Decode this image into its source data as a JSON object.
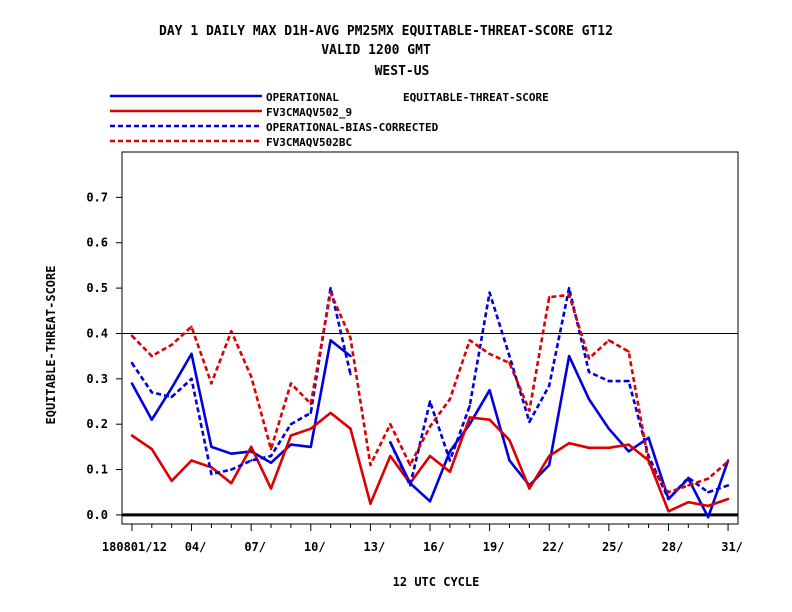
{
  "chart_data": {
    "type": "line",
    "title_lines": [
      "DAY 1 DAILY MAX   D1H-AVG PM25MX EQUITABLE-THREAT-SCORE GT12",
      "VALID 1200 GMT",
      "WEST-US"
    ],
    "legend_score_label": "EQUITABLE-THREAT-SCORE",
    "xlabel": "12 UTC CYCLE",
    "ylabel": "EQUITABLE-THREAT-SCORE",
    "xlim": [
      0.5,
      31.5
    ],
    "ylim": [
      -0.02,
      0.8
    ],
    "yticks": [
      0.0,
      0.1,
      0.2,
      0.3,
      0.4,
      0.5,
      0.6,
      0.7
    ],
    "ytick_labels": [
      "0.0",
      "0.1",
      "0.2",
      "0.3",
      "0.4",
      "0.5",
      "0.6",
      "0.7"
    ],
    "xticks": [
      1,
      4,
      7,
      10,
      13,
      16,
      19,
      22,
      25,
      28,
      31
    ],
    "xtick_labels": [
      "180801/12",
      "04/",
      "07/",
      "10/",
      "13/",
      "16/",
      "19/",
      "22/",
      "25/",
      "28/",
      "31/"
    ],
    "reference_lines": [
      0.0,
      0.4
    ],
    "x": [
      1,
      2,
      3,
      4,
      5,
      6,
      7,
      8,
      9,
      10,
      11,
      12,
      13,
      14,
      15,
      16,
      17,
      18,
      19,
      20,
      21,
      22,
      23,
      24,
      25,
      26,
      27,
      28,
      29,
      30,
      31
    ],
    "series": [
      {
        "name": "OPERATIONAL",
        "color": "#0000dd",
        "dash": "solid",
        "values": [
          0.29,
          0.21,
          0.28,
          0.355,
          0.15,
          0.135,
          0.14,
          0.115,
          0.155,
          0.15,
          0.385,
          0.35,
          null,
          0.16,
          0.07,
          0.03,
          0.14,
          0.2,
          0.275,
          0.12,
          0.065,
          0.11,
          0.35,
          0.255,
          0.19,
          0.14,
          0.17,
          0.035,
          0.08,
          -0.005,
          0.12
        ]
      },
      {
        "name": "FV3CMAQV502_9",
        "color": "#dd0000",
        "dash": "solid",
        "values": [
          0.175,
          0.145,
          0.075,
          0.12,
          0.105,
          0.07,
          0.15,
          0.058,
          0.175,
          0.19,
          0.225,
          0.19,
          0.025,
          0.13,
          0.07,
          0.13,
          0.095,
          0.215,
          0.21,
          0.165,
          0.058,
          0.13,
          0.158,
          0.148,
          0.148,
          0.155,
          0.12,
          0.008,
          0.028,
          0.02,
          0.035
        ]
      },
      {
        "name": "OPERATIONAL-BIAS-CORRECTED",
        "color": "#0000dd",
        "dash": "dashed",
        "values": [
          0.335,
          0.27,
          0.26,
          0.3,
          0.09,
          0.1,
          0.12,
          0.13,
          0.2,
          0.225,
          0.5,
          0.31,
          null,
          0.16,
          0.065,
          0.25,
          0.12,
          0.24,
          0.49,
          0.35,
          0.205,
          0.285,
          0.5,
          0.315,
          0.295,
          0.295,
          0.13,
          0.035,
          0.082,
          0.05,
          0.065
        ]
      },
      {
        "name": "FV3CMAQV502BC",
        "color": "#dd0000",
        "dash": "dashed",
        "values": [
          0.395,
          0.35,
          0.375,
          0.415,
          0.29,
          0.405,
          0.305,
          0.145,
          0.29,
          0.245,
          0.49,
          0.39,
          0.11,
          0.2,
          0.11,
          0.195,
          0.255,
          0.385,
          0.355,
          0.335,
          0.23,
          0.48,
          0.485,
          0.345,
          0.385,
          0.36,
          0.115,
          0.05,
          0.065,
          0.08,
          0.118
        ]
      }
    ]
  }
}
